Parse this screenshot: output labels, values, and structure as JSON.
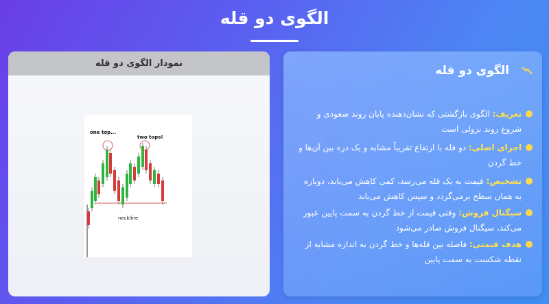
{
  "header": {
    "title": "الگوی دو قله"
  },
  "left_panel": {
    "title": "نمودار الگوی دو قله",
    "image_labels": {
      "one_top": "one top...",
      "two_tops": "two tops!",
      "neckline": "neckline"
    }
  },
  "right_panel": {
    "title": "الگوی دو قله",
    "items": [
      {
        "label": "تعریف:",
        "text": "الگوی بازگشتی که نشان‌دهنده پایان روند صعودی و شروع روند نزولی است"
      },
      {
        "label": "اجزای اصلی:",
        "text": "دو قله با ارتفاع تقریباً مشابه و یک دره بین آن‌ها و خط گردن"
      },
      {
        "label": "تشخیص:",
        "text": "قیمت به یک قله می‌رسد، کمی کاهش می‌یابد، دوباره به همان سطح برمی‌گردد و سپس کاهش می‌یابد"
      },
      {
        "label": "سیگنال فروش:",
        "text": "وقتی قیمت از خط گردن به سمت پایین عبور می‌کند، سیگنال فروش صادر می‌شود"
      },
      {
        "label": "هدف قیمتی:",
        "text": "فاصله بین قله‌ها و خط گردن به اندازه مشابه از نقطه شکست به سمت پایین"
      }
    ]
  }
}
